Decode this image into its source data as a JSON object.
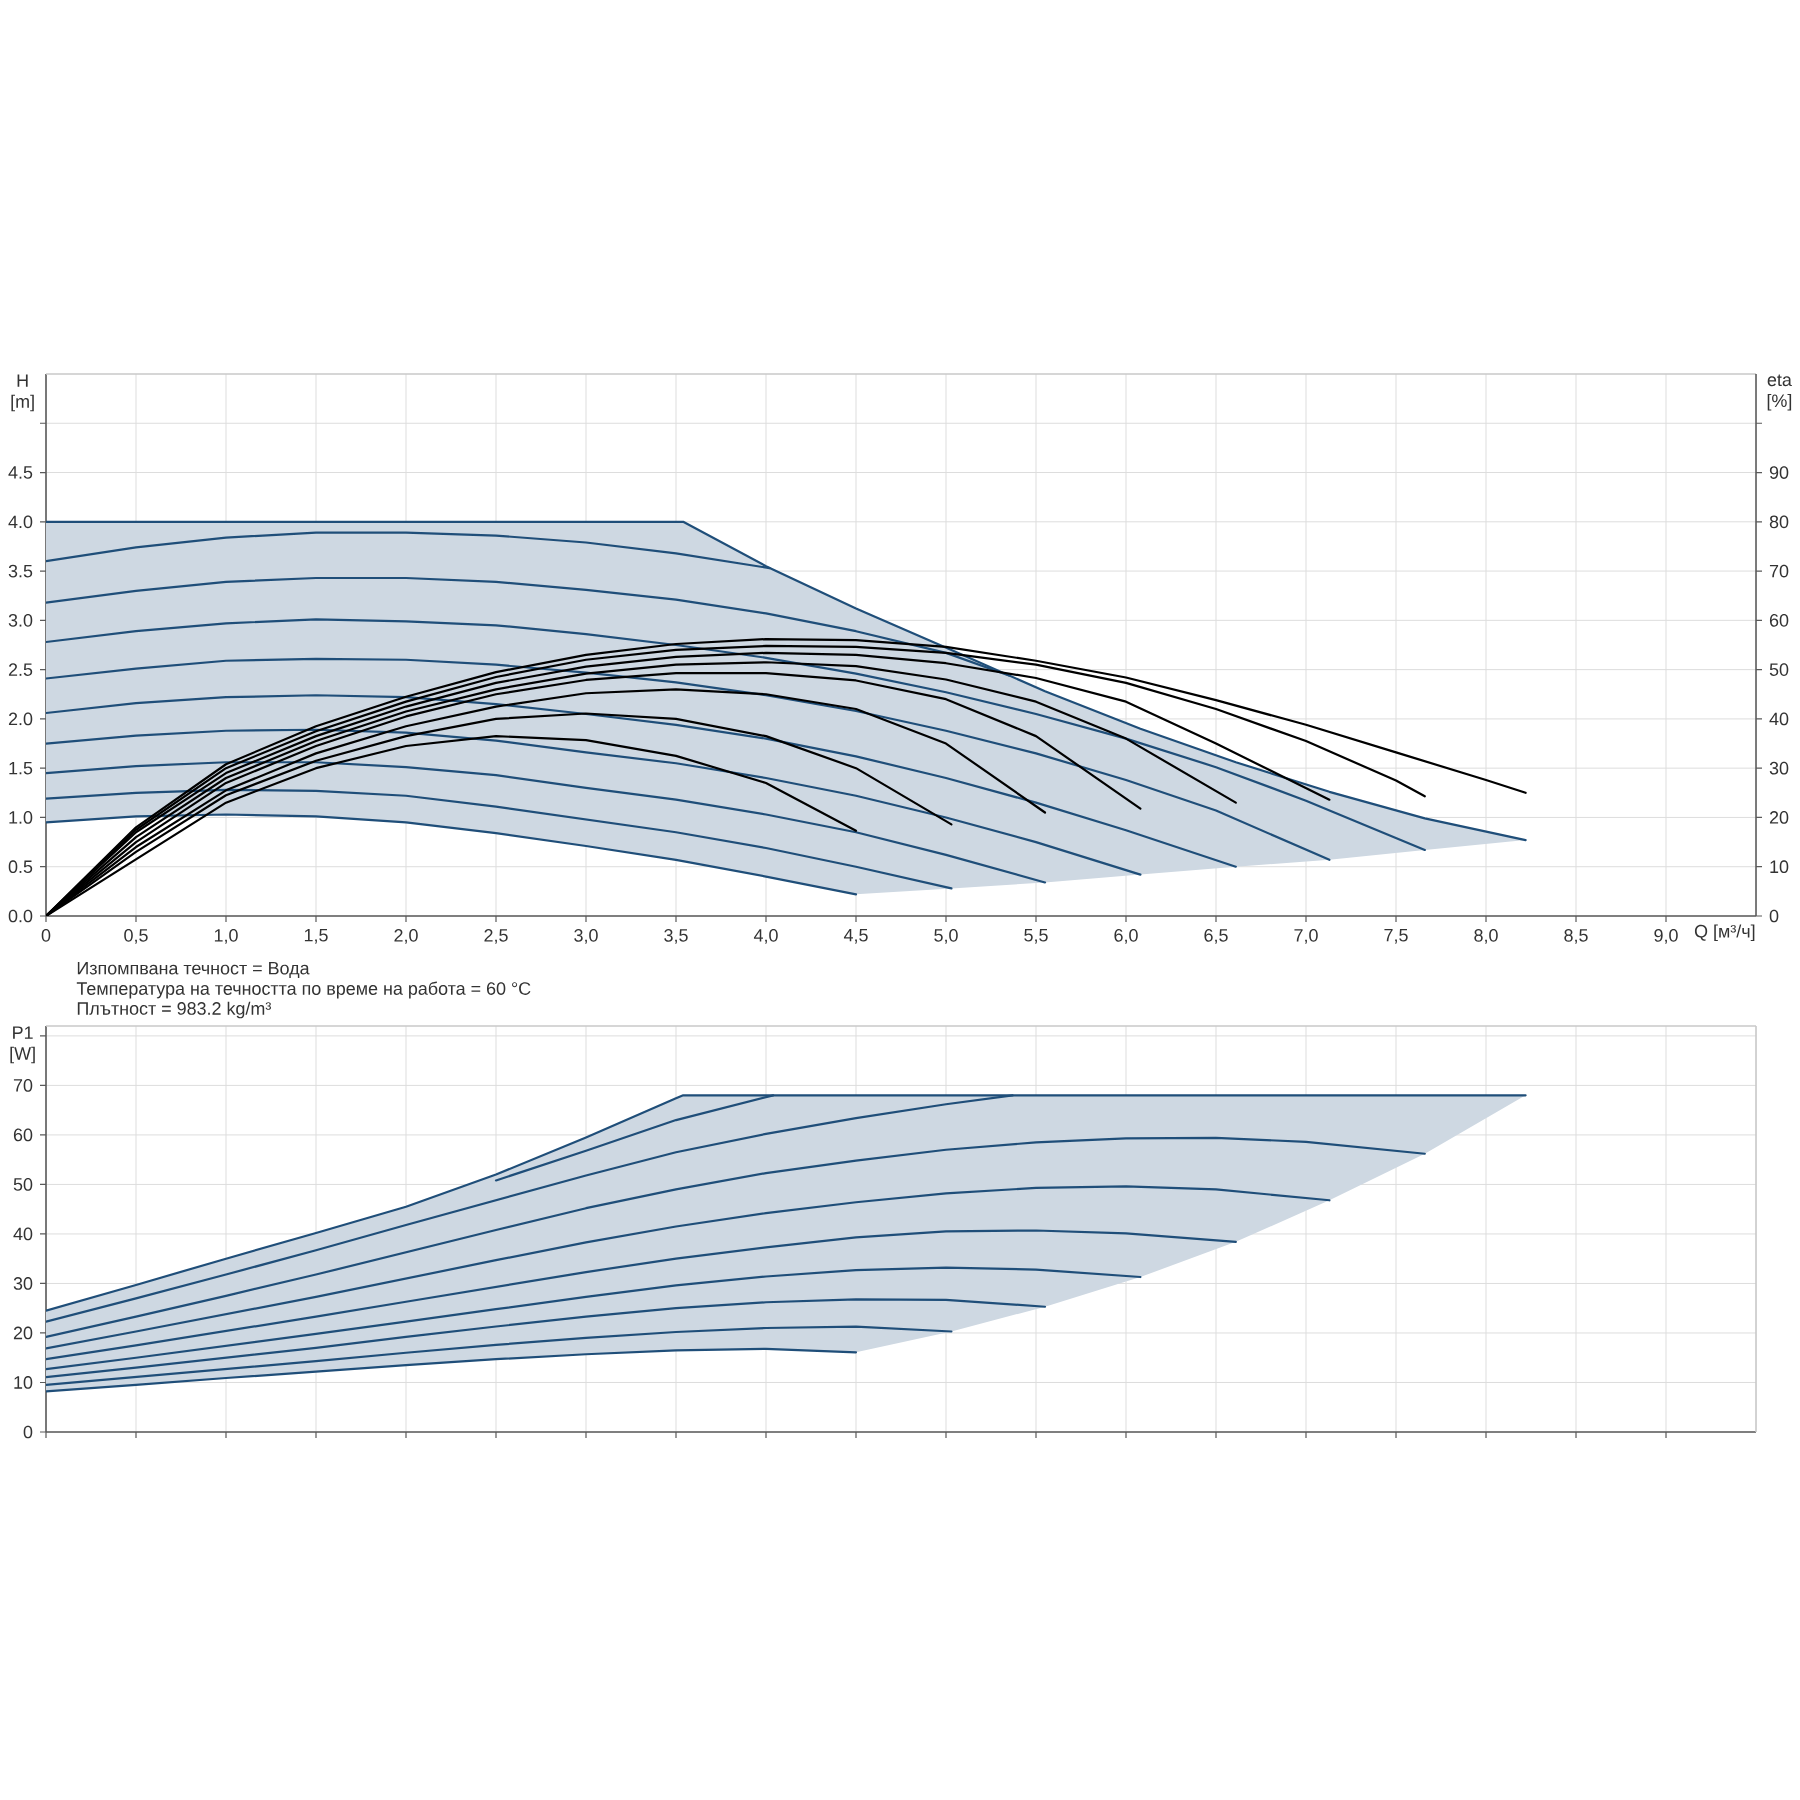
{
  "chart_data": [
    {
      "type": "line",
      "xlabel": "Q [м³/ч]",
      "ylabel": "H [m]",
      "y2label": "eta [%]",
      "annotations": [
        "Изпомпвана течност = Вода",
        "Температура на течността по време на работа = 60 °C",
        "Плътност = 983.2 kg/m³"
      ],
      "xlim": [
        0,
        9.5
      ],
      "xticks": [
        0,
        {
          "value": 0.5,
          "label": "0,5"
        },
        {
          "value": 1,
          "label": "1,0"
        },
        {
          "value": 1.5,
          "label": "1,5"
        },
        {
          "value": 2,
          "label": "2,0"
        },
        {
          "value": 2.5,
          "label": "2,5"
        },
        {
          "value": 3,
          "label": "3,0"
        },
        {
          "value": 3.5,
          "label": "3,5"
        },
        {
          "value": 4,
          "label": "4,0"
        },
        {
          "value": 4.5,
          "label": "4,5"
        },
        {
          "value": 5,
          "label": "5,0"
        },
        {
          "value": 5.5,
          "label": "5,5"
        },
        {
          "value": 6,
          "label": "6,0"
        },
        {
          "value": 6.5,
          "label": "6,5"
        },
        {
          "value": 7,
          "label": "7,0"
        },
        {
          "value": 7.5,
          "label": "7,5"
        },
        {
          "value": 8,
          "label": "8,0"
        },
        {
          "value": 8.5,
          "label": "8,5"
        },
        {
          "value": 9,
          "label": "9,0"
        }
      ],
      "ylim": [
        0,
        5.5
      ],
      "yticks": [
        {
          "value": 0,
          "label": "0.0"
        },
        0.5,
        {
          "value": 1,
          "label": "1.0"
        },
        1.5,
        {
          "value": 2,
          "label": "2.0"
        },
        2.5,
        {
          "value": 3,
          "label": "3.0"
        },
        3.5,
        {
          "value": 4,
          "label": "4.0"
        },
        4.5,
        {
          "value": 5,
          "label": null
        }
      ],
      "y2lim": [
        0,
        110
      ],
      "y2ticks": [
        0,
        10,
        20,
        30,
        40,
        50,
        60,
        70,
        80,
        90,
        {
          "value": 100,
          "label": null
        }
      ],
      "grid": true,
      "series": [
        {
          "color": "#1f4e79",
          "x": [
            0,
            0.5,
            1,
            1.5,
            2,
            2.5,
            3,
            3.5,
            3.54,
            4,
            4.5,
            5.03,
            5.55,
            6.08,
            6.61,
            7.13,
            7.66,
            8.22
          ],
          "values": [
            4.0,
            4.0,
            4.0,
            4.0,
            4.0,
            4.0,
            4.0,
            4.0,
            4.0,
            3.55,
            3.12,
            2.7,
            2.28,
            1.9,
            1.56,
            1.26,
            0.99,
            0.77
          ],
          "upper": [
            4.0,
            4.0,
            4.0,
            4.0,
            4.0,
            4.0,
            4.0,
            4.0,
            4.0,
            3.55,
            3.12,
            2.7,
            2.28,
            1.9,
            1.56,
            1.26,
            0.99,
            0.77
          ],
          "lower": [
            0.95,
            1.01,
            1.03,
            1.01,
            0.95,
            0.84,
            0.71,
            0.57,
            0.56,
            0.4,
            0.22,
            0.28,
            0.34,
            0.42,
            0.5,
            0.57,
            0.67,
            0.77
          ]
        },
        {
          "color": "#1f4e79",
          "x": [
            0,
            0.5,
            1,
            1.5,
            2,
            2.5,
            3,
            3.5,
            4.02
          ],
          "values": [
            3.6,
            3.74,
            3.84,
            3.89,
            3.89,
            3.86,
            3.79,
            3.68,
            3.53
          ]
        },
        {
          "color": "#1f4e79",
          "x": [
            0,
            0.5,
            1,
            1.5,
            2,
            2.5,
            3,
            3.5,
            4,
            4.5,
            5,
            5.35
          ],
          "values": [
            3.18,
            3.3,
            3.39,
            3.43,
            3.43,
            3.39,
            3.31,
            3.21,
            3.07,
            2.89,
            2.67,
            2.44
          ]
        },
        {
          "color": "#1f4e79",
          "x": [
            0,
            0.5,
            1,
            1.5,
            2,
            2.5,
            3,
            3.5,
            4,
            4.5,
            5,
            5.5,
            6,
            6.5,
            7,
            7.66
          ],
          "values": [
            2.78,
            2.89,
            2.97,
            3.01,
            2.99,
            2.95,
            2.86,
            2.75,
            2.62,
            2.46,
            2.27,
            2.05,
            1.8,
            1.51,
            1.17,
            0.67
          ]
        },
        {
          "color": "#1f4e79",
          "x": [
            0,
            0.5,
            1,
            1.5,
            2,
            2.5,
            3,
            3.5,
            4,
            4.5,
            5,
            5.5,
            6,
            6.5,
            7.13
          ],
          "values": [
            2.41,
            2.51,
            2.59,
            2.61,
            2.6,
            2.55,
            2.47,
            2.37,
            2.24,
            2.08,
            1.88,
            1.65,
            1.38,
            1.07,
            0.57
          ]
        },
        {
          "color": "#1f4e79",
          "x": [
            0,
            0.5,
            1,
            1.5,
            2,
            2.5,
            3,
            3.5,
            4,
            4.5,
            5,
            5.5,
            6,
            6.61
          ],
          "values": [
            2.06,
            2.16,
            2.22,
            2.24,
            2.22,
            2.15,
            2.05,
            1.94,
            1.8,
            1.62,
            1.4,
            1.15,
            0.87,
            0.5
          ]
        },
        {
          "color": "#1f4e79",
          "x": [
            0,
            0.5,
            1,
            1.5,
            2,
            2.5,
            3,
            3.5,
            4,
            4.5,
            5,
            5.5,
            6.08
          ],
          "values": [
            1.75,
            1.83,
            1.88,
            1.89,
            1.86,
            1.78,
            1.66,
            1.55,
            1.4,
            1.22,
            1.0,
            0.75,
            0.42
          ]
        },
        {
          "color": "#1f4e79",
          "x": [
            0,
            0.5,
            1,
            1.5,
            2,
            2.5,
            3,
            3.5,
            4,
            4.5,
            5,
            5.55
          ],
          "values": [
            1.45,
            1.52,
            1.56,
            1.56,
            1.51,
            1.43,
            1.3,
            1.18,
            1.03,
            0.85,
            0.62,
            0.34
          ]
        },
        {
          "color": "#1f4e79",
          "x": [
            0,
            0.5,
            1,
            1.5,
            2,
            2.5,
            3,
            3.5,
            4,
            4.5,
            5.03
          ],
          "values": [
            1.19,
            1.25,
            1.28,
            1.27,
            1.22,
            1.11,
            0.98,
            0.85,
            0.69,
            0.5,
            0.28
          ]
        },
        {
          "color": "#1f4e79",
          "x": [
            0,
            0.5,
            1,
            1.5,
            2,
            2.5,
            3,
            3.5,
            4,
            4.5
          ],
          "values": [
            0.95,
            1.01,
            1.03,
            1.01,
            0.95,
            0.84,
            0.71,
            0.57,
            0.4,
            0.22
          ]
        },
        {
          "axis": "y2",
          "color": "#000000",
          "x": [
            0,
            0.5,
            1,
            1.5,
            2,
            2.5,
            3,
            3.5,
            4,
            4.5
          ],
          "values": [
            0,
            11.5,
            23,
            30,
            34.5,
            36.5,
            35.7,
            32.5,
            27,
            17.3
          ]
        },
        {
          "axis": "y2",
          "color": "#000000",
          "x": [
            0,
            0.5,
            1,
            1.5,
            2,
            2.5,
            3,
            3.5,
            4,
            4.5,
            5.03
          ],
          "values": [
            0,
            13,
            24.5,
            31.5,
            36.5,
            40,
            41.1,
            40,
            36.5,
            30,
            18.6
          ]
        },
        {
          "axis": "y2",
          "color": "#000000",
          "x": [
            0,
            0.5,
            1,
            1.5,
            2,
            2.5,
            3,
            3.5,
            4,
            4.5,
            5,
            5.55
          ],
          "values": [
            0,
            14,
            25.5,
            33,
            38.5,
            42.5,
            45.2,
            46,
            45,
            42,
            35,
            21
          ]
        },
        {
          "axis": "y2",
          "color": "#000000",
          "x": [
            0,
            0.5,
            1,
            1.5,
            2,
            2.5,
            3,
            3.5,
            4,
            4.5,
            5,
            5.5,
            6.08
          ],
          "values": [
            0,
            15,
            27,
            34.5,
            40.5,
            45,
            47.9,
            49.3,
            49.3,
            47.8,
            44,
            36.5,
            21.8
          ]
        },
        {
          "axis": "y2",
          "color": "#000000",
          "x": [
            0,
            0.5,
            1,
            1.5,
            2,
            2.5,
            3,
            3.5,
            4,
            4.5,
            5,
            5.5,
            6,
            6.61
          ],
          "values": [
            0,
            16,
            28,
            35.5,
            41.5,
            46,
            49.2,
            51,
            51.5,
            50.7,
            48,
            43.5,
            36,
            23
          ]
        },
        {
          "axis": "y2",
          "color": "#000000",
          "x": [
            0,
            0.5,
            1,
            1.5,
            2,
            2.5,
            3,
            3.5,
            4,
            4.5,
            5,
            5.5,
            6,
            6.5,
            7.13
          ],
          "values": [
            0,
            17,
            29,
            36.5,
            42.5,
            47.3,
            50.6,
            52.6,
            53.4,
            53,
            51.3,
            48.3,
            43.5,
            35,
            23.6
          ]
        },
        {
          "axis": "y2",
          "color": "#000000",
          "x": [
            0,
            0.5,
            1,
            1.5,
            2,
            2.5,
            3,
            3.5,
            4,
            4.5,
            5,
            5.5,
            6,
            6.5,
            7,
            7.5,
            7.66
          ],
          "values": [
            0,
            17.5,
            30,
            37.5,
            43.5,
            48.5,
            52,
            54,
            54.8,
            54.6,
            53.4,
            51,
            47.3,
            42,
            35.5,
            27.5,
            24.3
          ]
        },
        {
          "axis": "y2",
          "color": "#000000",
          "x": [
            0,
            0.5,
            1,
            1.5,
            2,
            2.5,
            3,
            3.5,
            4,
            4.5,
            5,
            5.5,
            6,
            6.5,
            7,
            7.5,
            8,
            8.22
          ],
          "values": [
            0,
            18,
            30.8,
            38.5,
            44.5,
            49.5,
            53,
            55.2,
            56.2,
            56,
            54.6,
            51.8,
            48.4,
            43.8,
            38.8,
            33.2,
            27.6,
            25
          ]
        }
      ]
    },
    {
      "type": "line",
      "ylabel": "P1 [W]",
      "xlim": [
        0,
        9.5
      ],
      "xticks": [
        0,
        0.5,
        1,
        1.5,
        2,
        2.5,
        3,
        3.5,
        4,
        4.5,
        5,
        5.5,
        6,
        6.5,
        7,
        7.5,
        8,
        8.5,
        9
      ],
      "ylim": [
        0,
        82
      ],
      "yticks": [
        0,
        10,
        20,
        30,
        40,
        50,
        60,
        70,
        {
          "value": 80,
          "label": null
        }
      ],
      "tick_labels": "y",
      "grid": true,
      "series": [
        {
          "color": "#1f4e79",
          "x": [
            0,
            0.5,
            1,
            1.5,
            2,
            2.5,
            3,
            3.5,
            3.54,
            4,
            4.5,
            5.03,
            5.55,
            6.08,
            6.61,
            7.13,
            7.66,
            8.22
          ],
          "values": [
            24.5,
            29.7,
            35,
            40.2,
            45.5,
            52,
            59.5,
            67.4,
            68,
            68,
            68,
            68,
            68,
            68,
            68,
            68,
            68,
            68
          ],
          "upper": [
            24.5,
            29.7,
            35,
            40.2,
            45.5,
            52,
            59.5,
            67.4,
            68,
            68,
            68,
            68,
            68,
            68,
            68,
            68,
            68,
            68
          ],
          "lower": [
            8.2,
            9.5,
            10.9,
            12.2,
            13.5,
            14.7,
            15.7,
            16.5,
            16.5,
            16.8,
            16.1,
            20.3,
            25.3,
            31.3,
            38.4,
            46.8,
            56.2,
            68
          ]
        },
        {
          "color": "#1f4e79",
          "x": [
            2.5,
            3,
            3.5,
            4.04
          ],
          "values": [
            50.8,
            56.8,
            63,
            68
          ]
        },
        {
          "color": "#1f4e79",
          "x": [
            0,
            0.5,
            1,
            1.5,
            2,
            2.5,
            3,
            3.5,
            4,
            4.5,
            5,
            5.37
          ],
          "values": [
            22.3,
            27,
            31.8,
            36.7,
            41.8,
            46.8,
            51.8,
            56.5,
            60.2,
            63.4,
            66.2,
            68
          ]
        },
        {
          "color": "#1f4e79",
          "x": [
            0,
            0.5,
            1,
            1.5,
            2,
            2.5,
            3,
            3.5,
            4,
            4.5,
            5,
            5.5,
            6,
            6.5,
            7,
            7.66
          ],
          "values": [
            19.2,
            23.3,
            27.5,
            31.8,
            36.3,
            40.8,
            45.2,
            49,
            52.3,
            54.8,
            57,
            58.5,
            59.3,
            59.4,
            58.6,
            56.2
          ]
        },
        {
          "color": "#1f4e79",
          "x": [
            0,
            0.5,
            1,
            1.5,
            2,
            2.5,
            3,
            3.5,
            4,
            4.5,
            5,
            5.5,
            6,
            6.5,
            7.13
          ],
          "values": [
            16.9,
            20.3,
            23.8,
            27.3,
            31,
            34.7,
            38.3,
            41.5,
            44.2,
            46.4,
            48.2,
            49.3,
            49.6,
            49,
            46.8
          ]
        },
        {
          "color": "#1f4e79",
          "x": [
            0,
            0.5,
            1,
            1.5,
            2,
            2.5,
            3,
            3.5,
            4,
            4.5,
            5,
            5.5,
            6,
            6.61
          ],
          "values": [
            14.7,
            17.5,
            20.4,
            23.3,
            26.3,
            29.3,
            32.3,
            35,
            37.3,
            39.3,
            40.5,
            40.7,
            40.1,
            38.4
          ]
        },
        {
          "color": "#1f4e79",
          "x": [
            0,
            0.5,
            1,
            1.5,
            2,
            2.5,
            3,
            3.5,
            4,
            4.5,
            5,
            5.5,
            6.08
          ],
          "values": [
            12.7,
            15,
            17.4,
            19.8,
            22.3,
            24.8,
            27.3,
            29.6,
            31.4,
            32.7,
            33.2,
            32.8,
            31.3
          ]
        },
        {
          "color": "#1f4e79",
          "x": [
            0,
            0.5,
            1,
            1.5,
            2,
            2.5,
            3,
            3.5,
            4,
            4.5,
            5,
            5.55
          ],
          "values": [
            11.1,
            13,
            15,
            17,
            19.2,
            21.3,
            23.3,
            25,
            26.2,
            26.8,
            26.7,
            25.3
          ]
        },
        {
          "color": "#1f4e79",
          "x": [
            0,
            0.5,
            1,
            1.5,
            2,
            2.5,
            3,
            3.5,
            4,
            4.5,
            5.03
          ],
          "values": [
            9.5,
            11.1,
            12.7,
            14.3,
            16,
            17.6,
            19,
            20.2,
            21,
            21.3,
            20.3
          ]
        },
        {
          "color": "#1f4e79",
          "x": [
            0,
            0.5,
            1,
            1.5,
            2,
            2.5,
            3,
            3.5,
            4,
            4.5
          ],
          "values": [
            8.2,
            9.5,
            10.9,
            12.2,
            13.5,
            14.7,
            15.7,
            16.5,
            16.8,
            16.1
          ]
        }
      ]
    }
  ]
}
